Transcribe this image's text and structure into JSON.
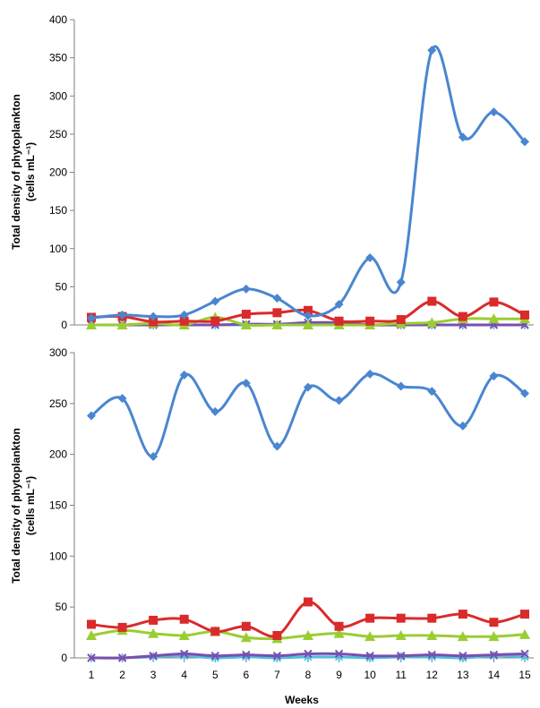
{
  "chart_data": [
    {
      "type": "line",
      "ylabel_line1": "Total density of phytoplankton",
      "ylabel_line2": "(cells mL⁻¹)",
      "ylim": [
        0,
        400
      ],
      "yticks": [
        0,
        50,
        100,
        150,
        200,
        250,
        300,
        350,
        400
      ],
      "x": [
        1,
        2,
        3,
        4,
        5,
        6,
        7,
        8,
        9,
        10,
        11,
        12,
        13,
        14,
        15
      ],
      "grid": false,
      "series": [
        {
          "color": "#4a86d0",
          "marker": "diamond",
          "values": [
            9,
            13,
            11,
            13,
            31,
            47,
            35,
            12,
            27,
            88,
            56,
            360,
            246,
            279,
            240
          ]
        },
        {
          "color": "#d92b2b",
          "marker": "square",
          "values": [
            10,
            11,
            4,
            5,
            5,
            14,
            16,
            19,
            5,
            5,
            7,
            31,
            11,
            30,
            13
          ]
        },
        {
          "color": "#9acd32",
          "marker": "triangle",
          "values": [
            0,
            0,
            2,
            0,
            10,
            0,
            0,
            0,
            0,
            0,
            2,
            3,
            8,
            8,
            8
          ]
        },
        {
          "color": "#7a4fb0",
          "marker": "xmark",
          "values": [
            0,
            0,
            0,
            0,
            0,
            1,
            1,
            3,
            3,
            0,
            0,
            0,
            0,
            0,
            0
          ]
        },
        {
          "color": "#4fbfe0",
          "marker": "star",
          "values": [
            0,
            0,
            0,
            0,
            0,
            0,
            0,
            0,
            0,
            0,
            0,
            0,
            0,
            0,
            0
          ]
        }
      ]
    },
    {
      "type": "line",
      "ylabel_line1": "Total density of phytoplankton",
      "ylabel_line2": "(cells mL⁻¹)",
      "xlabel": "Weeks",
      "ylim": [
        0,
        300
      ],
      "yticks": [
        0,
        50,
        100,
        150,
        200,
        250,
        300
      ],
      "x": [
        1,
        2,
        3,
        4,
        5,
        6,
        7,
        8,
        9,
        10,
        11,
        12,
        13,
        14,
        15
      ],
      "xticks": [
        "1",
        "2",
        "3",
        "4",
        "5",
        "6",
        "7",
        "8",
        "9",
        "10",
        "11",
        "12",
        "13",
        "14",
        "15"
      ],
      "grid": false,
      "series": [
        {
          "color": "#4a86d0",
          "marker": "diamond",
          "values": [
            238,
            255,
            198,
            278,
            242,
            270,
            208,
            266,
            253,
            279,
            267,
            262,
            228,
            277,
            260
          ]
        },
        {
          "color": "#d92b2b",
          "marker": "square",
          "values": [
            33,
            30,
            37,
            38,
            26,
            31,
            22,
            55,
            31,
            39,
            39,
            39,
            43,
            35,
            43
          ]
        },
        {
          "color": "#9acd32",
          "marker": "triangle",
          "values": [
            22,
            27,
            24,
            22,
            26,
            20,
            19,
            22,
            24,
            21,
            22,
            22,
            21,
            21,
            23
          ]
        },
        {
          "color": "#7a4fb0",
          "marker": "xmark",
          "values": [
            0,
            0,
            2,
            4,
            2,
            3,
            2,
            4,
            4,
            2,
            2,
            3,
            2,
            3,
            4
          ]
        },
        {
          "color": "#4fbfe0",
          "marker": "star",
          "values": [
            0,
            0,
            1,
            2,
            0,
            1,
            0,
            1,
            1,
            0,
            1,
            1,
            0,
            2,
            1
          ]
        }
      ]
    }
  ]
}
